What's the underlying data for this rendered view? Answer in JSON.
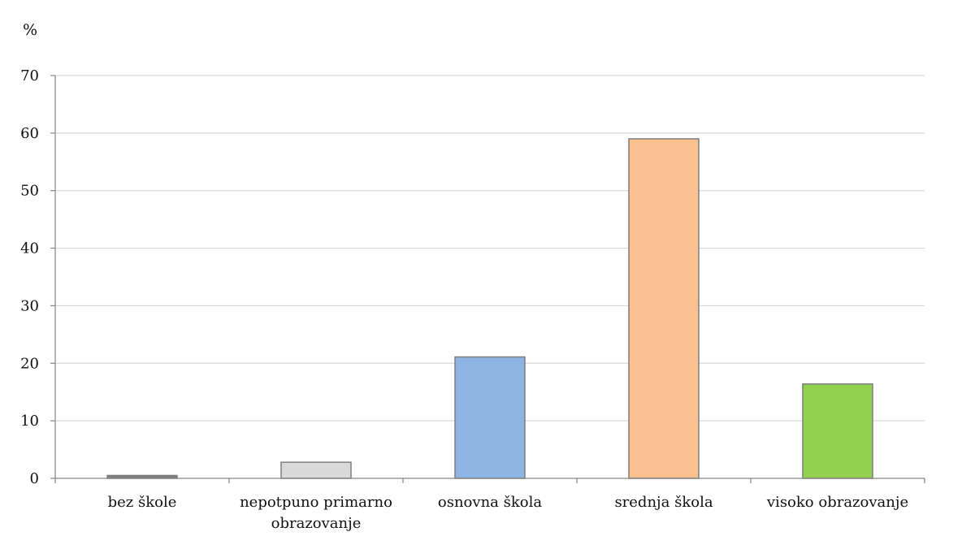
{
  "chart_data": {
    "type": "bar",
    "ylabel": "%",
    "ylim": [
      0,
      70
    ],
    "yticks": [
      0,
      10,
      20,
      30,
      40,
      50,
      60,
      70
    ],
    "grid": true,
    "categories": [
      [
        "bez škole"
      ],
      [
        "nepotpuno primarno",
        "obrazovanje"
      ],
      [
        "osnovna škola"
      ],
      [
        "srednja škola"
      ],
      [
        "visoko obrazovanje"
      ]
    ],
    "values": [
      0.5,
      2.8,
      21.1,
      59.0,
      16.4
    ],
    "colors": [
      "#7f7f7f",
      "#d9d9d9",
      "#8eb4e3",
      "#fac090",
      "#92d050"
    ]
  }
}
